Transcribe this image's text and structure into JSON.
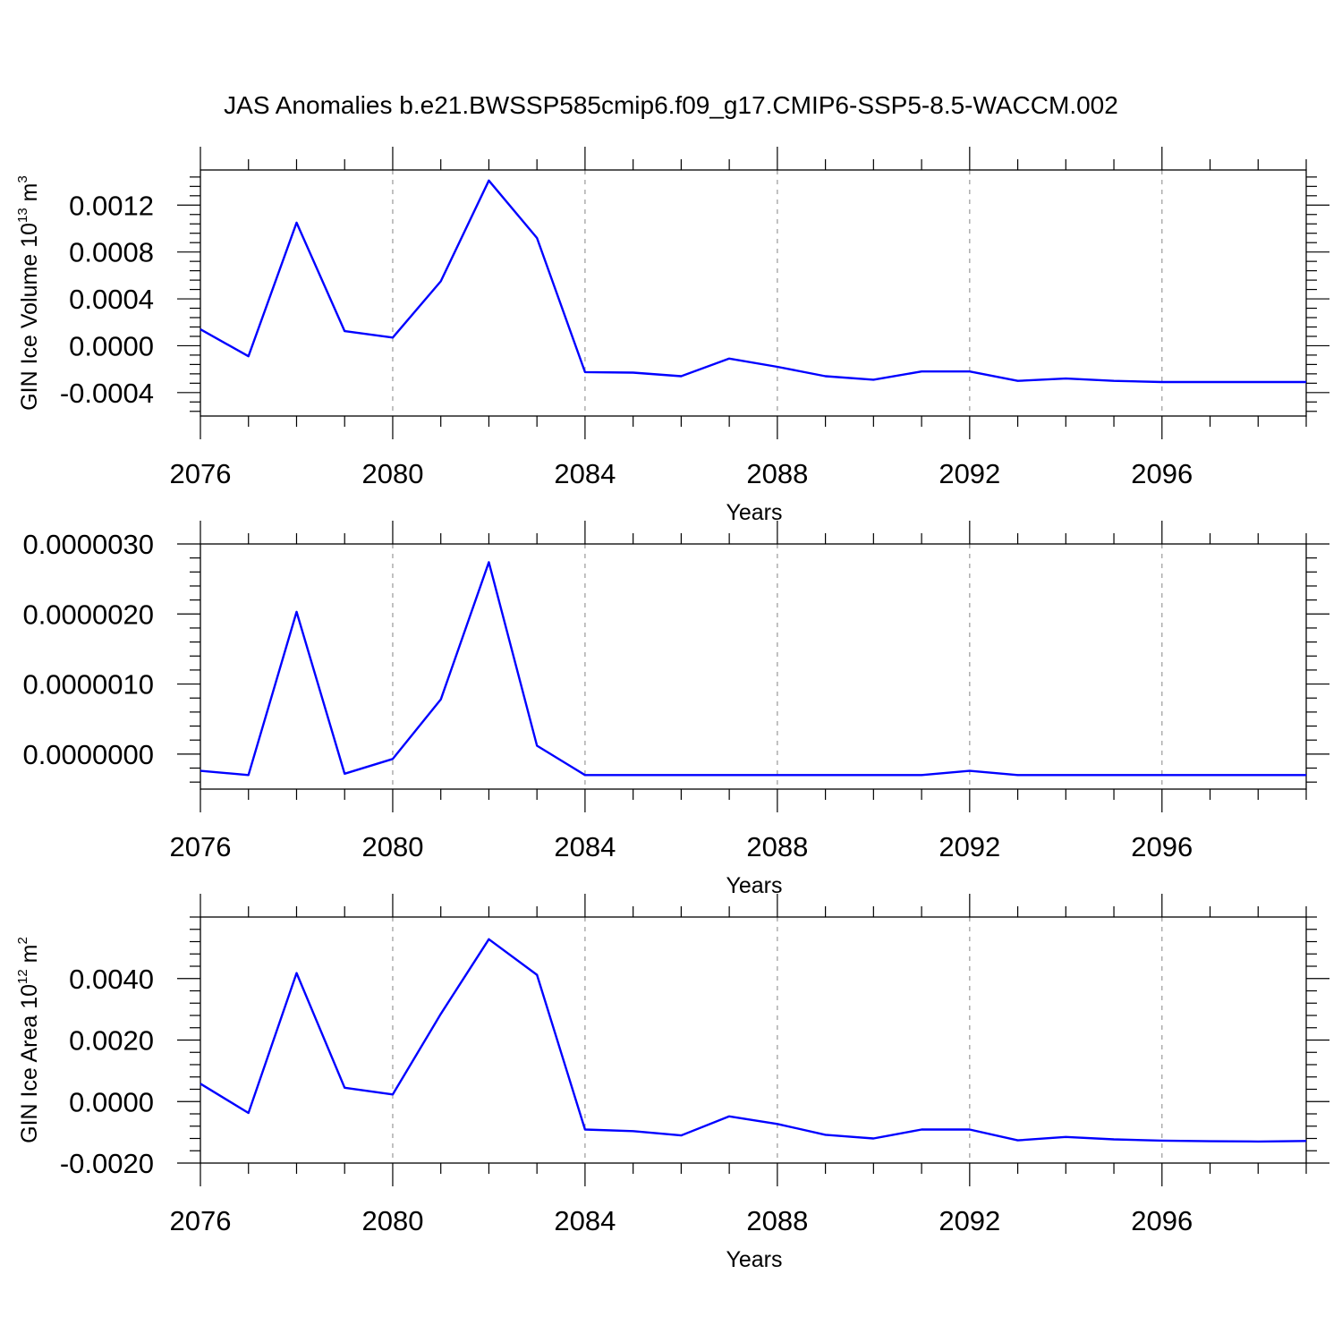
{
  "title": "JAS Anomalies b.e21.BWSSP585cmip6.f09_g17.CMIP6-SSP5-8.5-WACCM.002",
  "colors": {
    "line": "#0000ff",
    "axis": "#000000",
    "grid": "#999999"
  },
  "chart_data": [
    {
      "type": "line",
      "title": "JAS Anomalies b.e21.BWSSP585cmip6.f09_g17.CMIP6-SSP5-8.5-WACCM.002",
      "xlabel": "Years",
      "ylabel": {
        "text": "GIN Ice Volume 10",
        "exp": "13",
        "unit": " m",
        "unit_exp": "3"
      },
      "xlim": [
        2076,
        2099
      ],
      "ylim": [
        -0.0006,
        0.0015
      ],
      "xticks": [
        2076,
        2080,
        2084,
        2088,
        2092,
        2096
      ],
      "xtick_labels": [
        "2076",
        "2080",
        "2084",
        "2088",
        "2092",
        "2096"
      ],
      "yticks": [
        -0.0004,
        0.0,
        0.0004,
        0.0008,
        0.0012
      ],
      "ytick_labels": [
        "-0.0004",
        "0.0000",
        "0.0004",
        "0.0008",
        "0.0012"
      ],
      "grid": "vertical dashed at major x ticks",
      "x": [
        2076,
        2077,
        2078,
        2079,
        2080,
        2081,
        2082,
        2083,
        2084,
        2085,
        2086,
        2087,
        2088,
        2089,
        2090,
        2091,
        2092,
        2093,
        2094,
        2095,
        2096,
        2097,
        2098,
        2099
      ],
      "y": [
        0.00014,
        -9e-05,
        0.00105,
        0.000125,
        7e-05,
        0.00055,
        0.00141,
        0.00092,
        -0.000225,
        -0.00023,
        -0.00026,
        -0.00011,
        -0.00018,
        -0.00026,
        -0.00029,
        -0.00022,
        -0.00022,
        -0.0003,
        -0.00028,
        -0.0003,
        -0.00031,
        -0.00031,
        -0.00031,
        -0.00031
      ]
    },
    {
      "type": "line",
      "xlabel": "Years",
      "ylabel": null,
      "xlim": [
        2076,
        2099
      ],
      "ylim": [
        -5e-07,
        3e-06
      ],
      "xticks": [
        2076,
        2080,
        2084,
        2088,
        2092,
        2096
      ],
      "xtick_labels": [
        "2076",
        "2080",
        "2084",
        "2088",
        "2092",
        "2096"
      ],
      "yticks": [
        0.0,
        1e-06,
        2e-06,
        3e-06
      ],
      "ytick_labels": [
        "0.0000000",
        "0.0000010",
        "0.0000020",
        "0.0000030"
      ],
      "grid": "vertical dashed at major x ticks",
      "x": [
        2076,
        2077,
        2078,
        2079,
        2080,
        2081,
        2082,
        2083,
        2084,
        2085,
        2086,
        2087,
        2088,
        2089,
        2090,
        2091,
        2092,
        2093,
        2094,
        2095,
        2096,
        2097,
        2098,
        2099
      ],
      "y": [
        -2.4e-07,
        -3e-07,
        2.03e-06,
        -2.8e-07,
        -7e-08,
        7.8e-07,
        2.74e-06,
        1.2e-07,
        -3e-07,
        -3e-07,
        -3e-07,
        -3e-07,
        -3e-07,
        -3e-07,
        -3e-07,
        -3e-07,
        -2.4e-07,
        -3e-07,
        -3e-07,
        -3e-07,
        -3e-07,
        -3e-07,
        -3e-07,
        -3e-07
      ]
    },
    {
      "type": "line",
      "xlabel": "Years",
      "ylabel": {
        "text": "GIN Ice Area 10",
        "exp": "12",
        "unit": " m",
        "unit_exp": "2"
      },
      "xlim": [
        2076,
        2099
      ],
      "ylim": [
        -0.002,
        0.006
      ],
      "xticks": [
        2076,
        2080,
        2084,
        2088,
        2092,
        2096
      ],
      "xtick_labels": [
        "2076",
        "2080",
        "2084",
        "2088",
        "2092",
        "2096"
      ],
      "yticks": [
        -0.002,
        0.0,
        0.002,
        0.004
      ],
      "ytick_labels": [
        "-0.0020",
        "0.0000",
        "0.0020",
        "0.0040"
      ],
      "grid": "vertical dashed at major x ticks",
      "x": [
        2076,
        2077,
        2078,
        2079,
        2080,
        2081,
        2082,
        2083,
        2084,
        2085,
        2086,
        2087,
        2088,
        2089,
        2090,
        2091,
        2092,
        2093,
        2094,
        2095,
        2096,
        2097,
        2098,
        2099
      ],
      "y": [
        0.00058,
        -0.00037,
        0.00418,
        0.00045,
        0.00023,
        0.00285,
        0.00528,
        0.00412,
        -0.00091,
        -0.00096,
        -0.0011,
        -0.00048,
        -0.00073,
        -0.00108,
        -0.0012,
        -0.00091,
        -0.00091,
        -0.00126,
        -0.00115,
        -0.00123,
        -0.00127,
        -0.00129,
        -0.0013,
        -0.00128
      ]
    }
  ]
}
